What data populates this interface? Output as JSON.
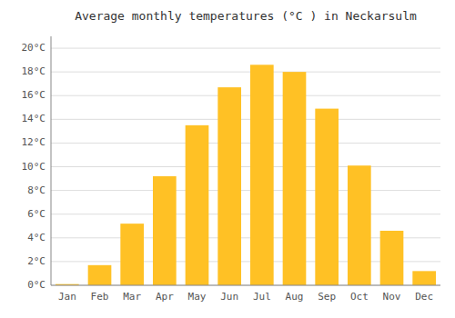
{
  "chart_data": {
    "type": "bar",
    "title": "Average monthly temperatures (°C ) in Neckarsulm",
    "categories": [
      "Jan",
      "Feb",
      "Mar",
      "Apr",
      "May",
      "Jun",
      "Jul",
      "Aug",
      "Sep",
      "Oct",
      "Nov",
      "Dec"
    ],
    "values": [
      0.1,
      1.7,
      5.2,
      9.2,
      13.5,
      16.7,
      18.6,
      18.0,
      14.9,
      10.1,
      4.6,
      1.2
    ],
    "color": "#FFC125",
    "ylim": [
      0,
      21
    ],
    "yticks": [
      {
        "value": 0,
        "label": "0°C"
      },
      {
        "value": 2,
        "label": "2°C"
      },
      {
        "value": 4,
        "label": "4°C"
      },
      {
        "value": 6,
        "label": "6°C"
      },
      {
        "value": 8,
        "label": "8°C"
      },
      {
        "value": 10,
        "label": "10°C"
      },
      {
        "value": 12,
        "label": "12°C"
      },
      {
        "value": 14,
        "label": "14°C"
      },
      {
        "value": 16,
        "label": "16°C"
      },
      {
        "value": 18,
        "label": "18°C"
      },
      {
        "value": 20,
        "label": "20°C"
      }
    ],
    "grid": true
  }
}
